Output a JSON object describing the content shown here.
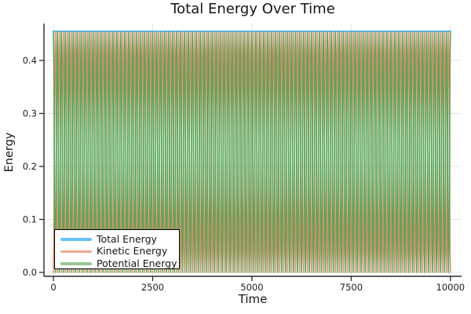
{
  "chart_data": {
    "type": "line",
    "title": "Total Energy Over Time",
    "xlabel": "Time",
    "ylabel": "Energy",
    "xlim": [
      -237,
      10280
    ],
    "ylim": [
      -0.0074,
      0.4696
    ],
    "xticks": [
      0,
      2500,
      5000,
      7500,
      10000
    ],
    "xtick_labels": [
      "0",
      "2500",
      "5000",
      "7500",
      "10000"
    ],
    "yticks": [
      0.0,
      0.1,
      0.2,
      0.3,
      0.4
    ],
    "ytick_labels": [
      "0.0",
      "0.1",
      "0.2",
      "0.3",
      "0.4"
    ],
    "grid": true,
    "legend_position": "bottom-left",
    "time_range": [
      0,
      10000
    ],
    "total_energy": 0.455,
    "oscillation_period": 100,
    "samples_per_period": 10,
    "series": [
      {
        "name": "Total Energy",
        "kind": "constant",
        "value": 0.455,
        "color": "#009AFA",
        "alpha": 0.65,
        "legend_color": "#66C2FC"
      },
      {
        "name": "Kinetic Energy",
        "kind": "sin2",
        "amplitude": 0.455,
        "period": 100,
        "color": "#E36F47",
        "alpha": 0.85,
        "legend_color": "#EEA991"
      },
      {
        "name": "Potential Energy",
        "kind": "cos2",
        "amplitude": 0.455,
        "period": 100,
        "color": "#3DA44E",
        "alpha": 0.9,
        "legend_color": "#98C995"
      }
    ],
    "colors": {
      "spine": "#2b2b2b",
      "grid": "#e4e4e4",
      "tick_label": "#1c1c1c"
    }
  }
}
